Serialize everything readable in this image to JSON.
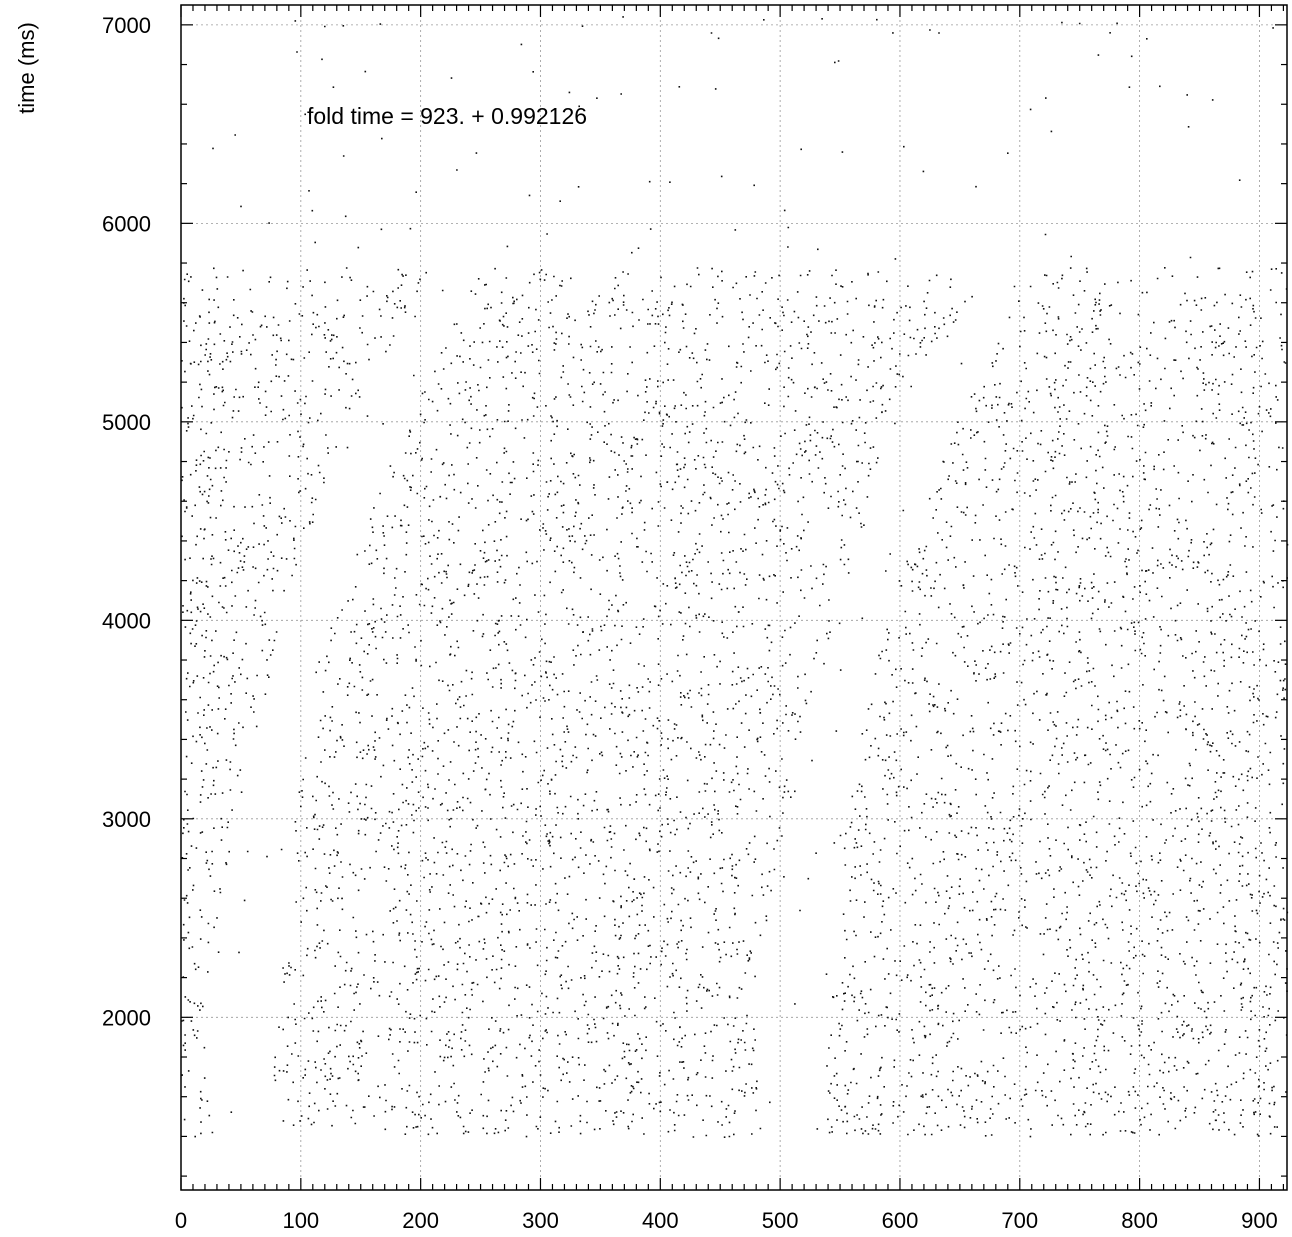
{
  "chart_data": {
    "type": "scatter",
    "title": "",
    "xlabel": "",
    "ylabel": "time (ms)",
    "annotation": "fold time = 923. +  0.992126",
    "xlim": [
      0,
      923
    ],
    "ylim": [
      1130,
      7100
    ],
    "xticks": [
      0,
      100,
      200,
      300,
      400,
      500,
      600,
      700,
      800,
      900
    ],
    "yticks": [
      2000,
      3000,
      4000,
      5000,
      6000,
      7000
    ],
    "grid": true,
    "fold_period": 923,
    "drift_per_fold": 0.992126,
    "dense_band_y": [
      1400,
      5780
    ],
    "series": [
      {
        "description_points": [
          {
            "y": 1400,
            "gap_x_left": 28,
            "gap_x_right": 72
          },
          {
            "y": 2000,
            "gap_x_left": 16,
            "gap_x_right": 80
          },
          {
            "y": 3000,
            "gap_x_left": 45,
            "gap_x_right": 92
          },
          {
            "y": 4000,
            "gap_x_left": 85,
            "gap_x_right": 125
          },
          {
            "y": 5000,
            "gap_x_left": 135,
            "gap_x_right": 185
          },
          {
            "y": 5780,
            "gap_x_left": 213,
            "gap_x_right": 250
          }
        ]
      }
    ]
  }
}
